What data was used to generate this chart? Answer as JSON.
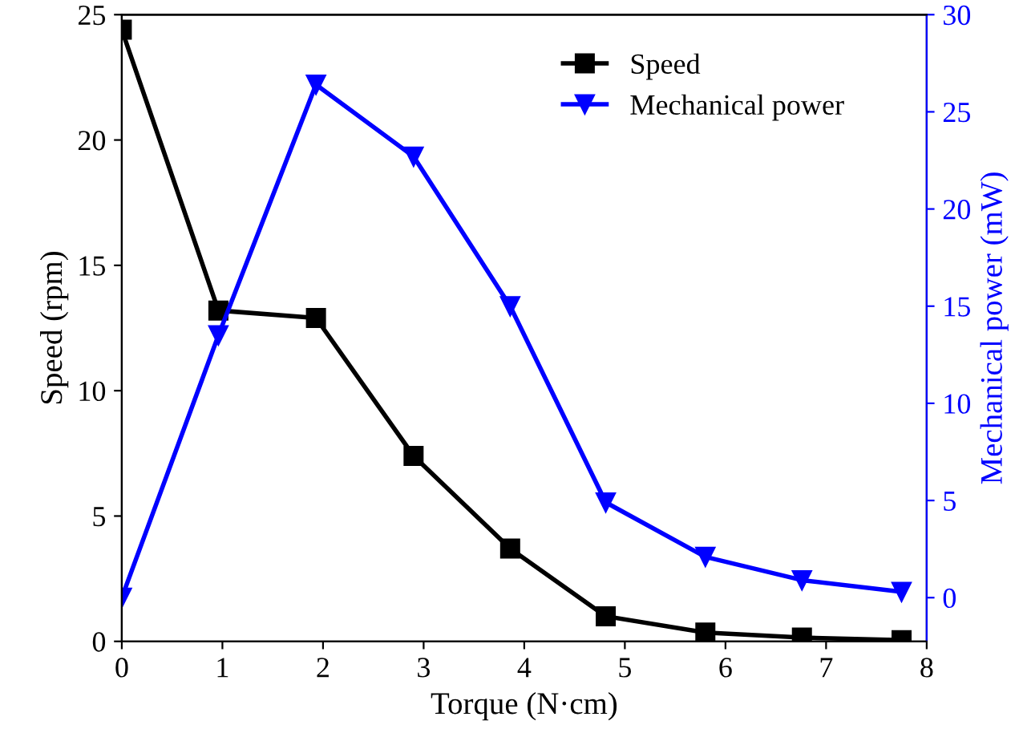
{
  "chart_data": {
    "type": "line",
    "xlabel": "Torque (N·cm)",
    "ylabel": "Speed (rpm)",
    "y2label": "Mechanical power (mW)",
    "series": [
      {
        "name": "Speed",
        "color": "#000000",
        "marker": "square",
        "x": [
          0,
          0.96,
          1.93,
          2.9,
          3.86,
          4.81,
          5.8,
          6.76,
          7.75
        ],
        "values": [
          24.4,
          13.2,
          12.9,
          7.4,
          3.7,
          1.0,
          0.35,
          0.15,
          0.05
        ]
      },
      {
        "name": "Mechanical power",
        "color": "#0000ff",
        "marker": "triangle",
        "axis": "y2",
        "x": [
          0,
          0.96,
          1.93,
          2.9,
          3.86,
          4.81,
          5.8,
          6.76,
          7.75
        ],
        "values": [
          0,
          13.5,
          26.4,
          22.7,
          15.0,
          4.9,
          2.1,
          0.9,
          0.3
        ]
      }
    ],
    "xlim": [
      0,
      8
    ],
    "xticks": [
      0,
      1,
      2,
      3,
      4,
      5,
      6,
      7,
      8
    ],
    "ylim": [
      0,
      25
    ],
    "yticks": [
      0,
      5,
      10,
      15,
      20,
      25
    ],
    "y2lim": [
      -2.25,
      30
    ],
    "y2ticks": [
      0,
      5,
      10,
      15,
      20,
      25,
      30
    ],
    "legend": "top right",
    "grid": false,
    "line_style": "solid"
  }
}
